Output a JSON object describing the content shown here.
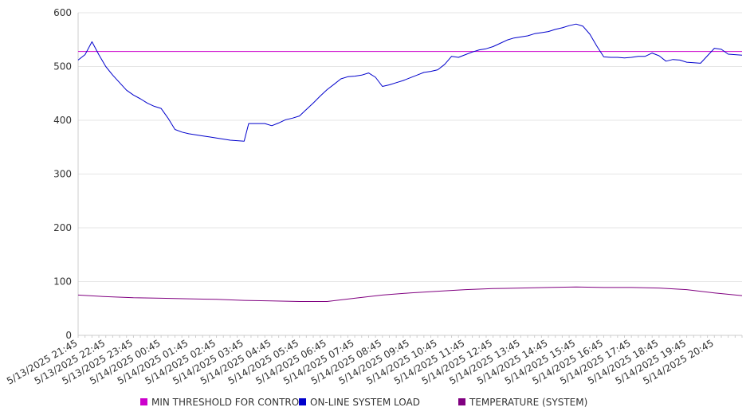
{
  "chart_data": {
    "type": "line",
    "ylim": [
      0,
      600
    ],
    "yticks": [
      0,
      100,
      200,
      300,
      400,
      500,
      600
    ],
    "grid": true,
    "legend_position": "bottom",
    "x_tick_labels": [
      "5/13/2025 21:45",
      "5/13/2025 22:45",
      "5/13/2025 23:45",
      "5/14/2025 00:45",
      "5/14/2025 01:45",
      "5/14/2025 02:45",
      "5/14/2025 03:45",
      "5/14/2025 04:45",
      "5/14/2025 05:45",
      "5/14/2025 06:45",
      "5/14/2025 07:45",
      "5/14/2025 08:45",
      "5/14/2025 09:45",
      "5/14/2025 10:45",
      "5/14/2025 11:45",
      "5/14/2025 12:45",
      "5/14/2025 13:45",
      "5/14/2025 14:45",
      "5/14/2025 15:45",
      "5/14/2025 16:45",
      "5/14/2025 17:45",
      "5/14/2025 18:45",
      "5/14/2025 19:45",
      "5/14/2025 20:45"
    ],
    "x_start": "5/13/2025 21:45",
    "x_end": "5/14/2025 21:45",
    "series": [
      {
        "name": "MIN THRESHOLD FOR CONTROL",
        "color": "#cc00cc",
        "points": [
          [
            "5/13/2025 21:45",
            528
          ],
          [
            "5/14/2025 21:45",
            528
          ]
        ]
      },
      {
        "name": "ON-LINE SYSTEM LOAD",
        "color": "#0000cc",
        "points": [
          [
            "5/13/2025 21:45",
            512
          ],
          [
            "5/13/2025 22:00",
            522
          ],
          [
            "5/13/2025 22:15",
            546
          ],
          [
            "5/13/2025 22:30",
            522
          ],
          [
            "5/13/2025 22:45",
            500
          ],
          [
            "5/13/2025 23:00",
            484
          ],
          [
            "5/13/2025 23:15",
            470
          ],
          [
            "5/13/2025 23:30",
            456
          ],
          [
            "5/13/2025 23:45",
            447
          ],
          [
            "5/14/2025 00:00",
            440
          ],
          [
            "5/14/2025 00:15",
            432
          ],
          [
            "5/14/2025 00:30",
            426
          ],
          [
            "5/14/2025 00:45",
            422
          ],
          [
            "5/14/2025 01:00",
            404
          ],
          [
            "5/14/2025 01:15",
            383
          ],
          [
            "5/14/2025 01:30",
            378
          ],
          [
            "5/14/2025 01:45",
            375
          ],
          [
            "5/14/2025 02:00",
            373
          ],
          [
            "5/14/2025 02:15",
            371
          ],
          [
            "5/14/2025 02:30",
            369
          ],
          [
            "5/14/2025 02:45",
            367
          ],
          [
            "5/14/2025 03:00",
            365
          ],
          [
            "5/14/2025 03:15",
            363
          ],
          [
            "5/14/2025 03:30",
            362
          ],
          [
            "5/14/2025 03:45",
            361
          ],
          [
            "5/14/2025 03:55",
            394
          ],
          [
            "5/14/2025 04:15",
            394
          ],
          [
            "5/14/2025 04:30",
            394
          ],
          [
            "5/14/2025 04:45",
            390
          ],
          [
            "5/14/2025 05:00",
            395
          ],
          [
            "5/14/2025 05:15",
            401
          ],
          [
            "5/14/2025 05:30",
            404
          ],
          [
            "5/14/2025 05:45",
            408
          ],
          [
            "5/14/2025 06:00",
            420
          ],
          [
            "5/14/2025 06:15",
            432
          ],
          [
            "5/14/2025 06:30",
            445
          ],
          [
            "5/14/2025 06:45",
            457
          ],
          [
            "5/14/2025 07:00",
            467
          ],
          [
            "5/14/2025 07:15",
            477
          ],
          [
            "5/14/2025 07:30",
            481
          ],
          [
            "5/14/2025 07:45",
            482
          ],
          [
            "5/14/2025 08:00",
            484
          ],
          [
            "5/14/2025 08:15",
            488
          ],
          [
            "5/14/2025 08:30",
            480
          ],
          [
            "5/14/2025 08:45",
            463
          ],
          [
            "5/14/2025 09:00",
            466
          ],
          [
            "5/14/2025 09:15",
            470
          ],
          [
            "5/14/2025 09:30",
            474
          ],
          [
            "5/14/2025 09:45",
            479
          ],
          [
            "5/14/2025 10:00",
            484
          ],
          [
            "5/14/2025 10:15",
            489
          ],
          [
            "5/14/2025 10:30",
            491
          ],
          [
            "5/14/2025 10:45",
            494
          ],
          [
            "5/14/2025 11:00",
            504
          ],
          [
            "5/14/2025 11:15",
            519
          ],
          [
            "5/14/2025 11:30",
            517
          ],
          [
            "5/14/2025 11:45",
            522
          ],
          [
            "5/14/2025 12:00",
            527
          ],
          [
            "5/14/2025 12:15",
            531
          ],
          [
            "5/14/2025 12:30",
            533
          ],
          [
            "5/14/2025 12:45",
            537
          ],
          [
            "5/14/2025 13:00",
            543
          ],
          [
            "5/14/2025 13:15",
            549
          ],
          [
            "5/14/2025 13:30",
            553
          ],
          [
            "5/14/2025 13:45",
            555
          ],
          [
            "5/14/2025 14:00",
            557
          ],
          [
            "5/14/2025 14:15",
            561
          ],
          [
            "5/14/2025 14:30",
            563
          ],
          [
            "5/14/2025 14:45",
            565
          ],
          [
            "5/14/2025 15:00",
            569
          ],
          [
            "5/14/2025 15:15",
            572
          ],
          [
            "5/14/2025 15:30",
            576
          ],
          [
            "5/14/2025 15:45",
            579
          ],
          [
            "5/14/2025 16:00",
            575
          ],
          [
            "5/14/2025 16:15",
            560
          ],
          [
            "5/14/2025 16:30",
            538
          ],
          [
            "5/14/2025 16:45",
            518
          ],
          [
            "5/14/2025 17:00",
            517
          ],
          [
            "5/14/2025 17:15",
            517
          ],
          [
            "5/14/2025 17:30",
            516
          ],
          [
            "5/14/2025 17:45",
            517
          ],
          [
            "5/14/2025 18:00",
            519
          ],
          [
            "5/14/2025 18:15",
            519
          ],
          [
            "5/14/2025 18:30",
            525
          ],
          [
            "5/14/2025 18:45",
            520
          ],
          [
            "5/14/2025 19:00",
            510
          ],
          [
            "5/14/2025 19:15",
            513
          ],
          [
            "5/14/2025 19:30",
            512
          ],
          [
            "5/14/2025 19:45",
            508
          ],
          [
            "5/14/2025 20:00",
            507
          ],
          [
            "5/14/2025 20:15",
            506
          ],
          [
            "5/14/2025 20:30",
            520
          ],
          [
            "5/14/2025 20:45",
            534
          ],
          [
            "5/14/2025 21:00",
            532
          ],
          [
            "5/14/2025 21:15",
            523
          ],
          [
            "5/14/2025 21:45",
            521
          ]
        ]
      },
      {
        "name": "TEMPERATURE (SYSTEM)",
        "color": "#800080",
        "points": [
          [
            "5/13/2025 21:45",
            75
          ],
          [
            "5/13/2025 22:45",
            72
          ],
          [
            "5/13/2025 23:45",
            70
          ],
          [
            "5/14/2025 00:45",
            69
          ],
          [
            "5/14/2025 01:45",
            68
          ],
          [
            "5/14/2025 02:45",
            67
          ],
          [
            "5/14/2025 03:45",
            65
          ],
          [
            "5/14/2025 04:45",
            64
          ],
          [
            "5/14/2025 05:45",
            63
          ],
          [
            "5/14/2025 06:45",
            63
          ],
          [
            "5/14/2025 07:45",
            69
          ],
          [
            "5/14/2025 08:45",
            75
          ],
          [
            "5/14/2025 09:45",
            79
          ],
          [
            "5/14/2025 10:45",
            82
          ],
          [
            "5/14/2025 11:45",
            85
          ],
          [
            "5/14/2025 12:45",
            87
          ],
          [
            "5/14/2025 13:45",
            88
          ],
          [
            "5/14/2025 14:45",
            89
          ],
          [
            "5/14/2025 15:45",
            90
          ],
          [
            "5/14/2025 16:45",
            89
          ],
          [
            "5/14/2025 17:45",
            89
          ],
          [
            "5/14/2025 18:45",
            88
          ],
          [
            "5/14/2025 19:45",
            85
          ],
          [
            "5/14/2025 20:45",
            79
          ],
          [
            "5/14/2025 21:45",
            74
          ]
        ]
      }
    ]
  }
}
